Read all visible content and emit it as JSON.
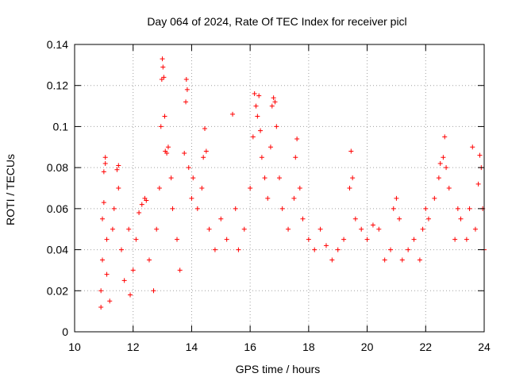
{
  "chart_data": {
    "type": "scatter",
    "title": "Day 064 of 2024, Rate Of TEC Index for receiver picl",
    "xlabel": "GPS time / hours",
    "ylabel": "ROTI / TECUs",
    "xlim": [
      10,
      24
    ],
    "ylim": [
      0,
      0.14
    ],
    "xticks": [
      10,
      12,
      14,
      16,
      18,
      20,
      22,
      24
    ],
    "xtick_labels": [
      "10",
      "12",
      "14",
      "16",
      "18",
      "20",
      "22",
      "24"
    ],
    "yticks": [
      0,
      0.02,
      0.04,
      0.06,
      0.08,
      0.1,
      0.12,
      0.14
    ],
    "ytick_labels": [
      "0",
      "0.02",
      "0.04",
      "0.06",
      "0.08",
      "0.1",
      "0.12",
      "0.14"
    ],
    "grid": true,
    "marker": "+",
    "color": "#ff0000",
    "series": [
      {
        "name": "ROTI",
        "points": [
          [
            10.9,
            0.012
          ],
          [
            10.9,
            0.02
          ],
          [
            10.95,
            0.035
          ],
          [
            10.95,
            0.055
          ],
          [
            11.0,
            0.063
          ],
          [
            11.0,
            0.078
          ],
          [
            11.05,
            0.085
          ],
          [
            11.05,
            0.082
          ],
          [
            11.1,
            0.045
          ],
          [
            11.1,
            0.028
          ],
          [
            11.2,
            0.015
          ],
          [
            11.3,
            0.05
          ],
          [
            11.35,
            0.06
          ],
          [
            11.45,
            0.079
          ],
          [
            11.5,
            0.081
          ],
          [
            11.5,
            0.07
          ],
          [
            11.6,
            0.04
          ],
          [
            11.7,
            0.025
          ],
          [
            11.85,
            0.05
          ],
          [
            11.9,
            0.018
          ],
          [
            12.0,
            0.03
          ],
          [
            12.1,
            0.045
          ],
          [
            12.2,
            0.058
          ],
          [
            12.3,
            0.062
          ],
          [
            12.4,
            0.065
          ],
          [
            12.45,
            0.064
          ],
          [
            12.55,
            0.035
          ],
          [
            12.7,
            0.02
          ],
          [
            12.8,
            0.05
          ],
          [
            12.9,
            0.07
          ],
          [
            12.95,
            0.1
          ],
          [
            12.98,
            0.123
          ],
          [
            13.0,
            0.133
          ],
          [
            13.02,
            0.129
          ],
          [
            13.05,
            0.124
          ],
          [
            13.08,
            0.105
          ],
          [
            13.1,
            0.088
          ],
          [
            13.15,
            0.087
          ],
          [
            13.2,
            0.09
          ],
          [
            13.3,
            0.075
          ],
          [
            13.35,
            0.06
          ],
          [
            13.5,
            0.045
          ],
          [
            13.6,
            0.03
          ],
          [
            13.75,
            0.087
          ],
          [
            13.8,
            0.112
          ],
          [
            13.82,
            0.123
          ],
          [
            13.85,
            0.118
          ],
          [
            13.9,
            0.08
          ],
          [
            14.0,
            0.065
          ],
          [
            14.05,
            0.075
          ],
          [
            14.2,
            0.06
          ],
          [
            14.35,
            0.07
          ],
          [
            14.4,
            0.085
          ],
          [
            14.45,
            0.099
          ],
          [
            14.5,
            0.088
          ],
          [
            14.6,
            0.05
          ],
          [
            14.8,
            0.04
          ],
          [
            15.0,
            0.055
          ],
          [
            15.2,
            0.045
          ],
          [
            15.4,
            0.106
          ],
          [
            15.5,
            0.06
          ],
          [
            15.6,
            0.04
          ],
          [
            15.8,
            0.05
          ],
          [
            16.0,
            0.07
          ],
          [
            16.1,
            0.095
          ],
          [
            16.15,
            0.116
          ],
          [
            16.2,
            0.11
          ],
          [
            16.25,
            0.105
          ],
          [
            16.3,
            0.115
          ],
          [
            16.35,
            0.098
          ],
          [
            16.4,
            0.085
          ],
          [
            16.5,
            0.075
          ],
          [
            16.6,
            0.065
          ],
          [
            16.7,
            0.09
          ],
          [
            16.75,
            0.11
          ],
          [
            16.8,
            0.114
          ],
          [
            16.85,
            0.112
          ],
          [
            16.9,
            0.1
          ],
          [
            17.0,
            0.075
          ],
          [
            17.1,
            0.06
          ],
          [
            17.3,
            0.05
          ],
          [
            17.5,
            0.065
          ],
          [
            17.55,
            0.085
          ],
          [
            17.6,
            0.094
          ],
          [
            17.7,
            0.07
          ],
          [
            17.8,
            0.055
          ],
          [
            18.0,
            0.045
          ],
          [
            18.2,
            0.04
          ],
          [
            18.4,
            0.05
          ],
          [
            18.6,
            0.042
          ],
          [
            18.8,
            0.035
          ],
          [
            19.0,
            0.04
          ],
          [
            19.2,
            0.045
          ],
          [
            19.4,
            0.07
          ],
          [
            19.45,
            0.088
          ],
          [
            19.5,
            0.075
          ],
          [
            19.6,
            0.055
          ],
          [
            19.8,
            0.05
          ],
          [
            20.0,
            0.045
          ],
          [
            20.2,
            0.052
          ],
          [
            20.4,
            0.05
          ],
          [
            20.6,
            0.035
          ],
          [
            20.8,
            0.04
          ],
          [
            20.9,
            0.06
          ],
          [
            21.0,
            0.065
          ],
          [
            21.1,
            0.055
          ],
          [
            21.2,
            0.035
          ],
          [
            21.4,
            0.04
          ],
          [
            21.6,
            0.045
          ],
          [
            21.8,
            0.035
          ],
          [
            21.9,
            0.05
          ],
          [
            22.0,
            0.06
          ],
          [
            22.1,
            0.055
          ],
          [
            22.3,
            0.065
          ],
          [
            22.45,
            0.075
          ],
          [
            22.5,
            0.082
          ],
          [
            22.6,
            0.085
          ],
          [
            22.65,
            0.095
          ],
          [
            22.7,
            0.08
          ],
          [
            22.8,
            0.07
          ],
          [
            23.0,
            0.045
          ],
          [
            23.1,
            0.06
          ],
          [
            23.2,
            0.055
          ],
          [
            23.4,
            0.045
          ],
          [
            23.5,
            0.06
          ],
          [
            23.6,
            0.09
          ],
          [
            23.7,
            0.05
          ],
          [
            23.8,
            0.072
          ],
          [
            23.85,
            0.086
          ],
          [
            23.9,
            0.08
          ],
          [
            23.95,
            0.06
          ],
          [
            24.0,
            0.04
          ]
        ]
      }
    ]
  }
}
